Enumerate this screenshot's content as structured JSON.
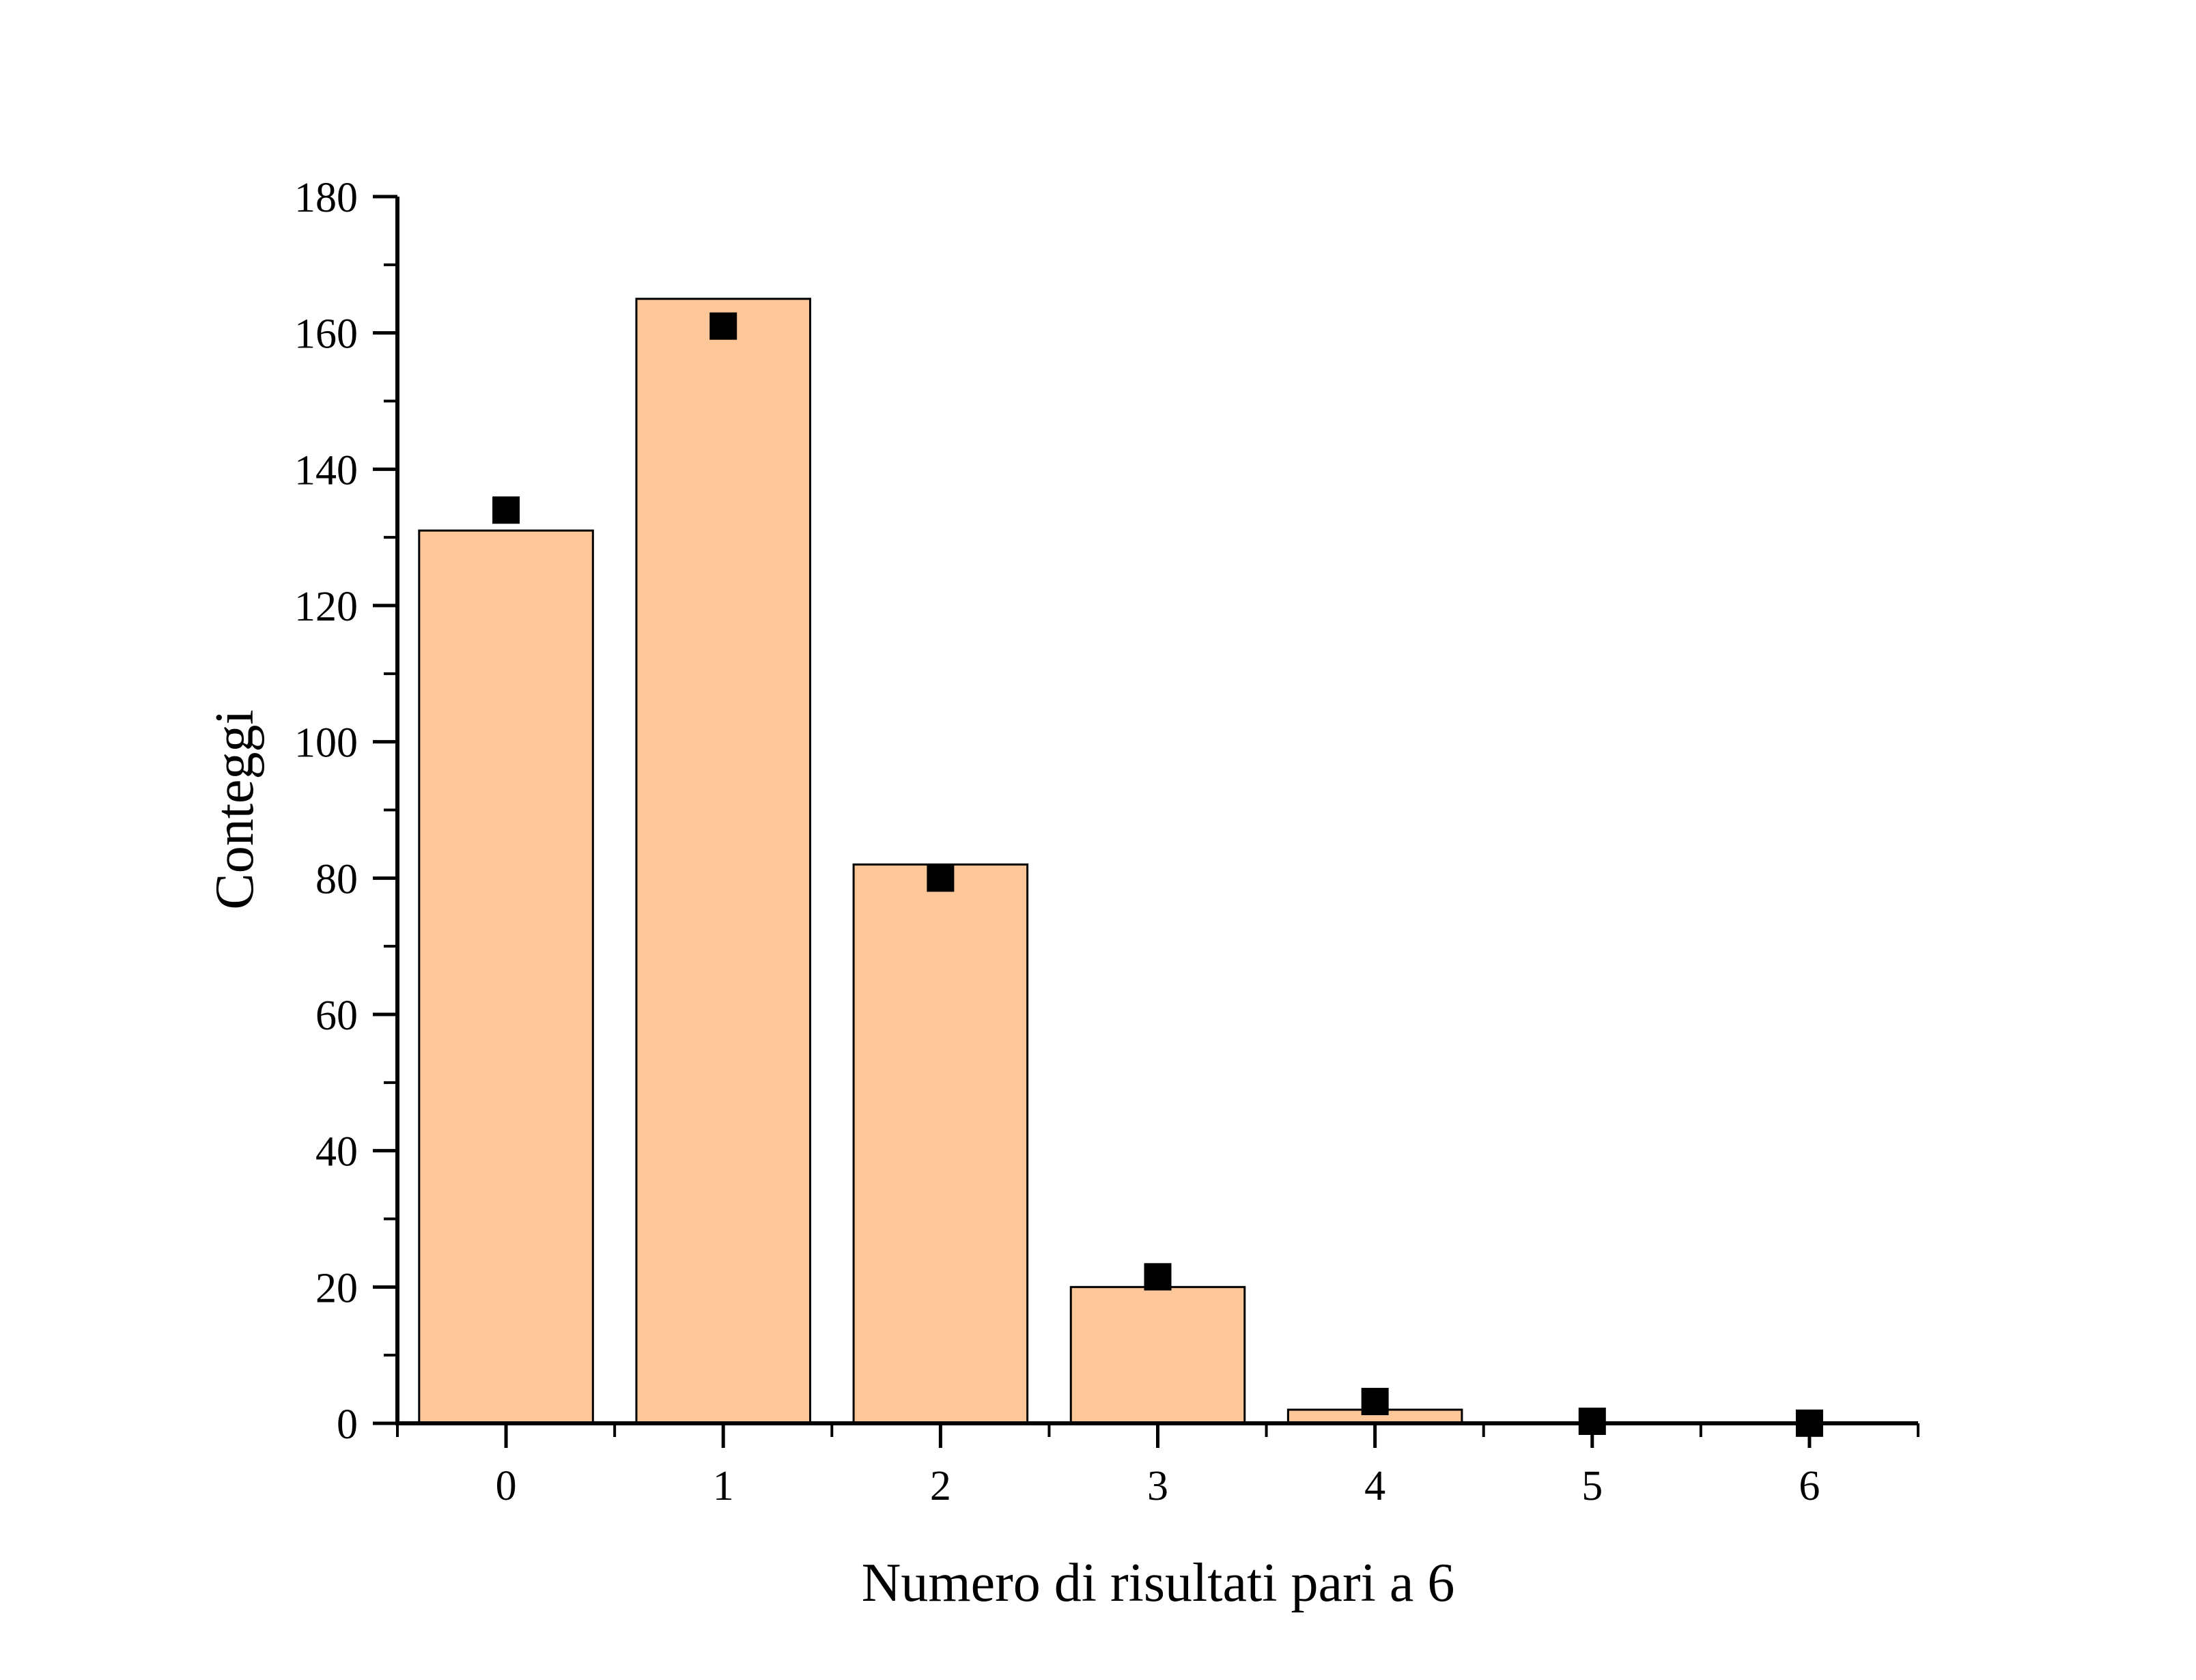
{
  "chart_data": {
    "type": "bar",
    "title": "",
    "xlabel": "Numero di risultati pari a 6",
    "ylabel": "Conteggi",
    "categories": [
      "0",
      "1",
      "2",
      "3",
      "4",
      "5",
      "6"
    ],
    "series": [
      {
        "kind": "bar",
        "values": [
          131,
          165,
          82,
          20,
          2,
          0,
          0
        ],
        "color": "#FDC799"
      },
      {
        "kind": "scatter",
        "marker": "square",
        "values": [
          134,
          161,
          80,
          21.5,
          3.2,
          0.3,
          0.02
        ],
        "color": "#000000"
      }
    ],
    "ylim": [
      0,
      180
    ],
    "yticks": [
      0,
      20,
      40,
      60,
      80,
      100,
      120,
      140,
      160,
      180
    ],
    "xlim": [
      -0.5,
      6.5
    ],
    "grid": false,
    "legend": "none"
  }
}
